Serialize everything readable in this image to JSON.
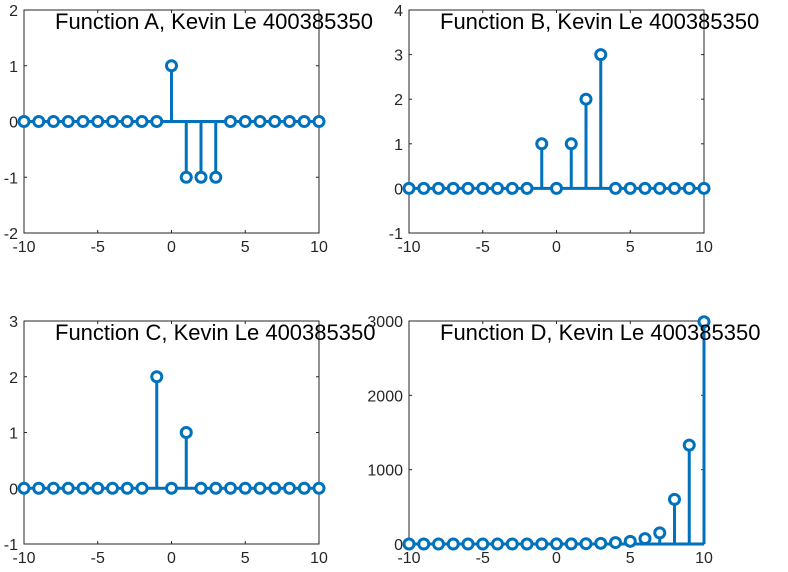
{
  "figure": {
    "stem_color": "#0072BD",
    "axes_color": "#262626",
    "background": "#ffffff"
  },
  "chart_data": [
    {
      "type": "stem",
      "title": "Function A, Kevin Le 400385350",
      "xlabel": "",
      "ylabel": "",
      "xlim": [
        -10,
        10
      ],
      "ylim": [
        -2,
        2
      ],
      "xticks": [
        -10,
        -5,
        0,
        5,
        10
      ],
      "yticks": [
        -2,
        -1,
        0,
        1,
        2
      ],
      "grid": false,
      "x": [
        -10,
        -9,
        -8,
        -7,
        -6,
        -5,
        -4,
        -3,
        -2,
        -1,
        0,
        1,
        2,
        3,
        4,
        5,
        6,
        7,
        8,
        9,
        10
      ],
      "y": [
        0,
        0,
        0,
        0,
        0,
        0,
        0,
        0,
        0,
        0,
        1,
        -1,
        -1,
        -1,
        0,
        0,
        0,
        0,
        0,
        0,
        0
      ]
    },
    {
      "type": "stem",
      "title": "Function B, Kevin Le 400385350",
      "xlabel": "",
      "ylabel": "",
      "xlim": [
        -10,
        10
      ],
      "ylim": [
        -1,
        4
      ],
      "xticks": [
        -10,
        -5,
        0,
        5,
        10
      ],
      "yticks": [
        -1,
        0,
        1,
        2,
        3,
        4
      ],
      "grid": false,
      "x": [
        -10,
        -9,
        -8,
        -7,
        -6,
        -5,
        -4,
        -3,
        -2,
        -1,
        0,
        1,
        2,
        3,
        4,
        5,
        6,
        7,
        8,
        9,
        10
      ],
      "y": [
        0,
        0,
        0,
        0,
        0,
        0,
        0,
        0,
        0,
        1,
        0,
        1,
        2,
        3,
        0,
        0,
        0,
        0,
        0,
        0,
        0
      ]
    },
    {
      "type": "stem",
      "title": "Function C, Kevin Le 400385350",
      "xlabel": "",
      "ylabel": "",
      "xlim": [
        -10,
        10
      ],
      "ylim": [
        -1,
        3
      ],
      "xticks": [
        -10,
        -5,
        0,
        5,
        10
      ],
      "yticks": [
        -1,
        0,
        1,
        2,
        3
      ],
      "grid": false,
      "x": [
        -10,
        -9,
        -8,
        -7,
        -6,
        -5,
        -4,
        -3,
        -2,
        -1,
        0,
        1,
        2,
        3,
        4,
        5,
        6,
        7,
        8,
        9,
        10
      ],
      "y": [
        0,
        0,
        0,
        0,
        0,
        0,
        0,
        0,
        0,
        2,
        0,
        1,
        0,
        0,
        0,
        0,
        0,
        0,
        0,
        0,
        0
      ]
    },
    {
      "type": "stem",
      "title": "Function D, Kevin Le 400385350",
      "xlabel": "",
      "ylabel": "",
      "xlim": [
        -10,
        10
      ],
      "ylim": [
        0,
        3000
      ],
      "xticks": [
        -10,
        -5,
        0,
        5,
        10
      ],
      "yticks": [
        0,
        1000,
        2000,
        3000
      ],
      "grid": false,
      "x": [
        -10,
        -9,
        -8,
        -7,
        -6,
        -5,
        -4,
        -3,
        -2,
        -1,
        0,
        1,
        2,
        3,
        4,
        5,
        6,
        7,
        8,
        9,
        10
      ],
      "y": [
        0,
        0,
        0,
        0,
        0,
        0,
        0,
        0,
        0,
        0,
        1,
        1,
        4,
        9,
        19,
        36,
        72,
        150,
        600,
        1330,
        2990
      ]
    }
  ]
}
